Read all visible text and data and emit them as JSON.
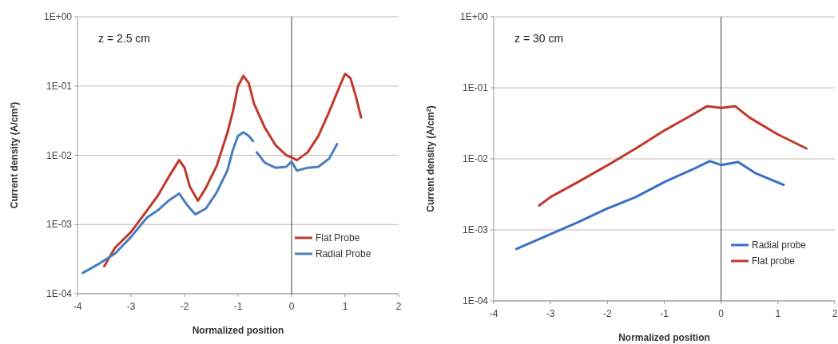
{
  "chart_data": [
    {
      "type": "line",
      "xlabel": "Normalized position",
      "ylabel": "Current density (A/cm²)",
      "log": "y",
      "grid": "y",
      "legend": "bottom right",
      "marker": "none",
      "line_style": "solid",
      "annotations": [
        "z = 2.5 cm"
      ],
      "xlim": [
        -4,
        2
      ],
      "xticks": [
        -4,
        -3,
        -2,
        -1,
        0,
        1,
        2
      ],
      "ylim": [
        0.0001,
        1
      ],
      "yticks": [
        {
          "value": 1,
          "label": "1E+00"
        },
        {
          "value": 0.1,
          "label": "1E-01"
        },
        {
          "value": 0.01,
          "label": "1E-02"
        },
        {
          "value": 0.001,
          "label": "1E-03"
        },
        {
          "value": 0.0001,
          "label": "1E-04"
        }
      ],
      "ref_lines": [
        {
          "axis": "x",
          "value": 0,
          "color": "#404040"
        }
      ],
      "series": [
        {
          "name": "Flat Probe",
          "color": "#c0392b",
          "x": [
            -3.5,
            -3.3,
            -3.0,
            -2.7,
            -2.5,
            -2.3,
            -2.1,
            -2.0,
            -1.9,
            -1.75,
            -1.6,
            -1.4,
            -1.2,
            -1.1,
            -1.0,
            -0.9,
            -0.8,
            -0.7,
            -0.5,
            -0.3,
            -0.1,
            0,
            0.1,
            0.3,
            0.5,
            0.7,
            0.9,
            1.0,
            1.1,
            1.2,
            1.3
          ],
          "values": [
            0.00025,
            0.00046,
            0.00078,
            0.0016,
            0.0026,
            0.0048,
            0.0085,
            0.0066,
            0.0035,
            0.0022,
            0.0034,
            0.007,
            0.021,
            0.042,
            0.1,
            0.14,
            0.11,
            0.055,
            0.025,
            0.014,
            0.01,
            0.0093,
            0.0085,
            0.011,
            0.019,
            0.042,
            0.1,
            0.15,
            0.13,
            0.071,
            0.035
          ]
        },
        {
          "name": "Radial Probe",
          "color": "#4a7ebb",
          "x": [
            -3.9,
            -3.6,
            -3.3,
            -3.0,
            -2.7,
            -2.5,
            -2.3,
            -2.1,
            -1.95,
            -1.8,
            -1.6,
            -1.4,
            -1.2,
            -1.1,
            -1.0,
            -0.9,
            -0.8,
            -0.72,
            -0.68,
            -0.65,
            -0.5,
            -0.3,
            -0.1,
            0,
            0.1,
            0.3,
            0.5,
            0.7,
            0.85
          ],
          "values": [
            0.0002,
            0.00027,
            0.00038,
            0.00066,
            0.00126,
            0.0016,
            0.0022,
            0.0028,
            0.0019,
            0.0014,
            0.0017,
            0.0029,
            0.006,
            0.0117,
            0.019,
            0.0215,
            0.019,
            0.016,
            null,
            0.011,
            0.0078,
            0.0066,
            0.0068,
            0.0081,
            0.006,
            0.0066,
            0.0068,
            0.0089,
            0.0145
          ]
        }
      ]
    },
    {
      "type": "line",
      "xlabel": "Normalized position",
      "ylabel": "Current density (A/cm²)",
      "log": "y",
      "grid": "y",
      "legend": "bottom right",
      "marker": "none",
      "line_style": "solid",
      "annotations": [
        "z = 30 cm"
      ],
      "xlim": [
        -4,
        2
      ],
      "xticks": [
        -4,
        -3,
        -2,
        -1,
        0,
        1,
        2
      ],
      "ylim": [
        0.0001,
        1
      ],
      "yticks": [
        {
          "value": 1,
          "label": "1E+00"
        },
        {
          "value": 0.1,
          "label": "1E-01"
        },
        {
          "value": 0.01,
          "label": "1E-02"
        },
        {
          "value": 0.001,
          "label": "1E-03"
        },
        {
          "value": 0.0001,
          "label": "1E-04"
        }
      ],
      "ref_lines": [
        {
          "axis": "x",
          "value": 0,
          "color": "#404040"
        }
      ],
      "series": [
        {
          "name": "Radial probe",
          "color": "#3a6fc4",
          "x": [
            -3.6,
            -3.0,
            -2.5,
            -2.0,
            -1.5,
            -1.0,
            -0.5,
            -0.2,
            0,
            0.3,
            0.6,
            1.1
          ],
          "values": [
            0.00054,
            0.00087,
            0.0013,
            0.002,
            0.0029,
            0.0047,
            0.0071,
            0.0093,
            0.0082,
            0.009,
            0.0063,
            0.0043
          ]
        },
        {
          "name": "Flat probe",
          "color": "#c0392b",
          "x": [
            -3.2,
            -3.0,
            -2.5,
            -2.0,
            -1.5,
            -1.0,
            -0.5,
            -0.25,
            0,
            0.25,
            0.5,
            1.0,
            1.5
          ],
          "values": [
            0.0022,
            0.0029,
            0.0048,
            0.0081,
            0.014,
            0.025,
            0.042,
            0.055,
            0.052,
            0.055,
            0.038,
            0.022,
            0.014
          ]
        }
      ]
    }
  ]
}
